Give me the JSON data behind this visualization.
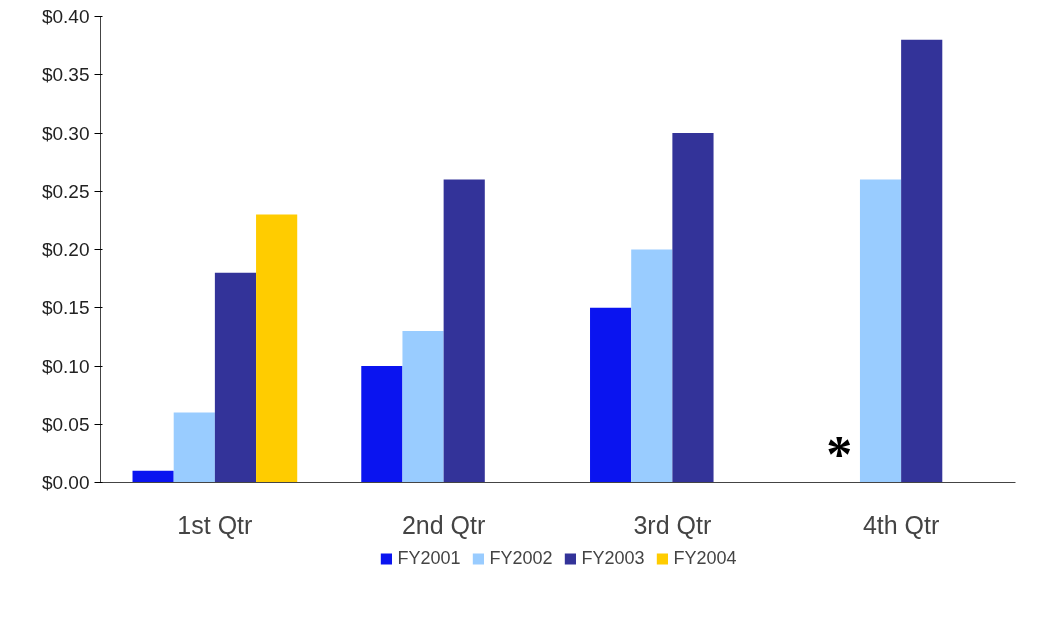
{
  "chart_data": {
    "type": "bar",
    "categories": [
      "1st Qtr",
      "2nd Qtr",
      "3rd Qtr",
      "4th Qtr"
    ],
    "series": [
      {
        "name": "FY2001",
        "color": "#0a14f0",
        "values": [
          0.01,
          0.1,
          0.15,
          null
        ]
      },
      {
        "name": "FY2002",
        "color": "#99ccff",
        "values": [
          0.06,
          0.13,
          0.2,
          0.26
        ]
      },
      {
        "name": "FY2003",
        "color": "#333399",
        "values": [
          0.18,
          0.26,
          0.3,
          0.38
        ]
      },
      {
        "name": "FY2004",
        "color": "#ffcc00",
        "values": [
          0.23,
          null,
          null,
          null
        ]
      }
    ],
    "ylim": [
      0,
      0.4
    ],
    "yticks": [
      {
        "value": 0,
        "label": "$0.00"
      },
      {
        "value": 0.05,
        "label": "$0.05"
      },
      {
        "value": 0.1,
        "label": "$0.10"
      },
      {
        "value": 0.15,
        "label": "$0.15"
      },
      {
        "value": 0.2,
        "label": "$0.20"
      },
      {
        "value": 0.25,
        "label": "$0.25"
      },
      {
        "value": 0.3,
        "label": "$0.30"
      },
      {
        "value": 0.35,
        "label": "$0.35"
      },
      {
        "value": 0.4,
        "label": "$0.40"
      }
    ],
    "annotations": [
      {
        "text": "*",
        "x": "4th Qtr",
        "y": 0
      }
    ],
    "grid": false,
    "legend": "bottom"
  }
}
